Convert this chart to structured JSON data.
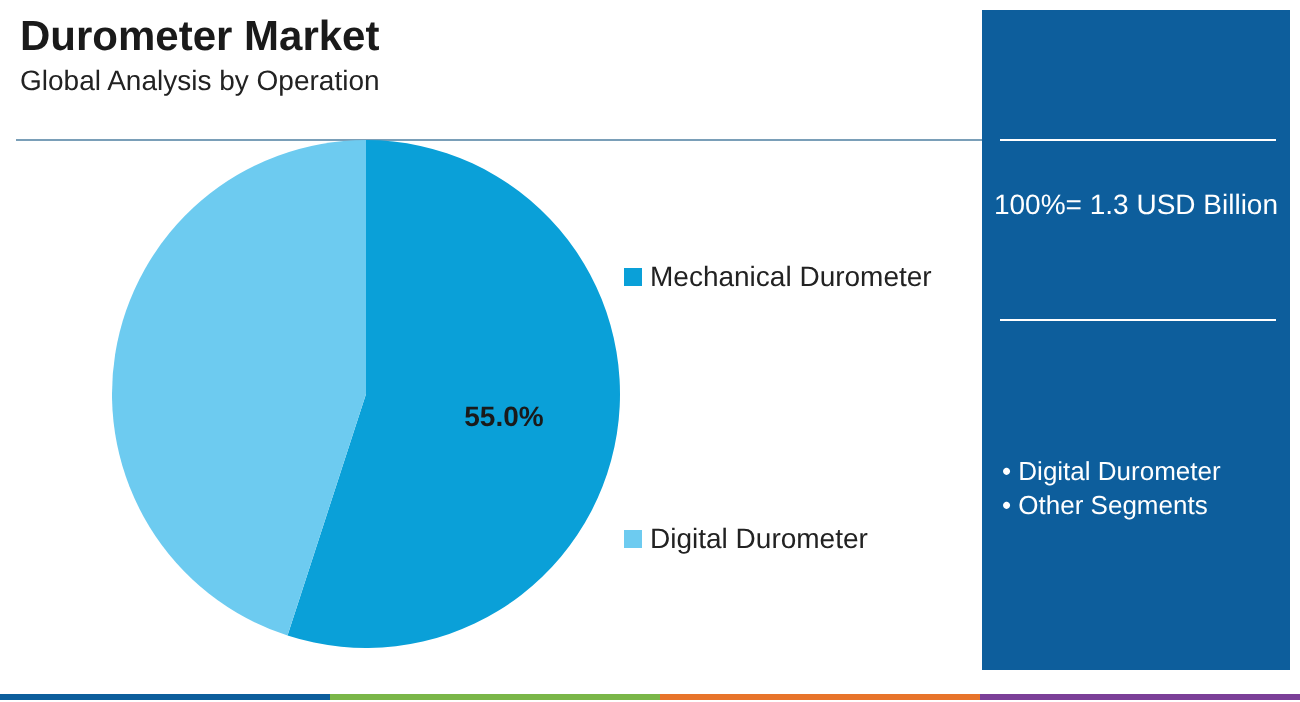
{
  "chart_data": {
    "type": "pie",
    "title": "Durometer Market",
    "subtitle": "Global Analysis by Operation",
    "categories": [
      "Mechanical Durometer",
      "Digital Durometer"
    ],
    "values": [
      55,
      45
    ],
    "colors": [
      "#0aa0d8",
      "#6dcbf0"
    ],
    "value_labels": [
      "55.0%",
      null
    ],
    "legend": "right",
    "annotations": [
      "100%= 1.3 USD Billion",
      "• Digital Durometer",
      "• Other Segments"
    ]
  }
}
